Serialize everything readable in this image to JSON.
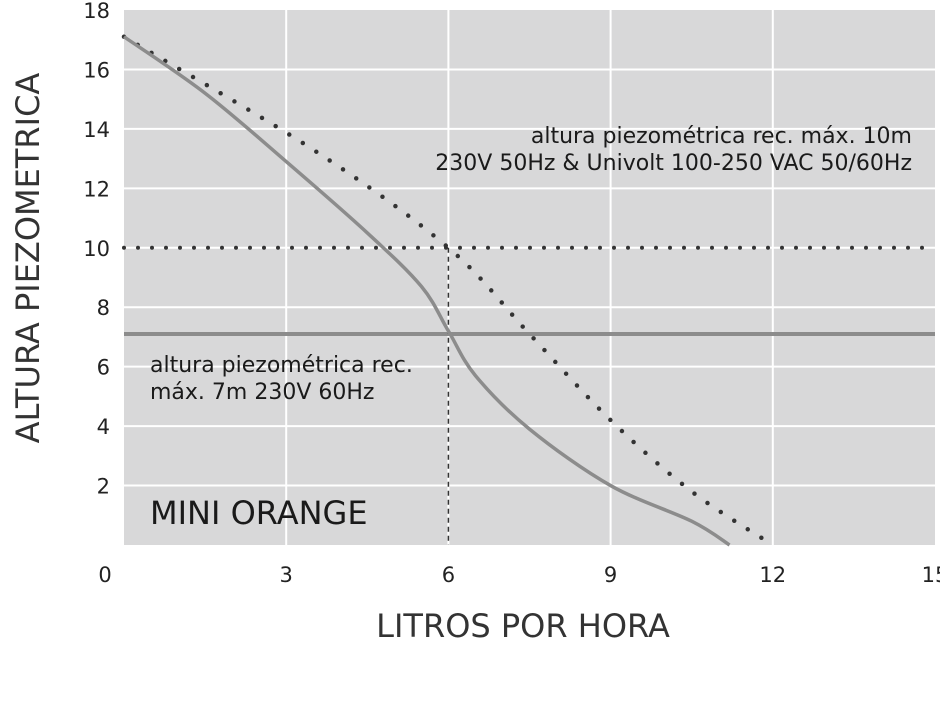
{
  "chart_data": {
    "type": "line",
    "title": "MINI ORANGE",
    "xlabel": "LITROS POR HORA",
    "ylabel": "ALTURA PIEZOMETRICA",
    "xlim": [
      0,
      15
    ],
    "ylim": [
      0,
      18
    ],
    "x_ticks": [
      0,
      3,
      6,
      9,
      12,
      15
    ],
    "y_ticks": [
      2,
      4,
      6,
      8,
      10,
      12,
      14,
      16,
      18
    ],
    "grid": true,
    "series": [
      {
        "style": "dotted",
        "color": "#333333",
        "points": [
          [
            0,
            17.1
          ],
          [
            3.5,
            13.3
          ],
          [
            6,
            10
          ],
          [
            7.5,
            7.1
          ],
          [
            9,
            4.2
          ],
          [
            10.5,
            1.8
          ],
          [
            12,
            0
          ]
        ]
      },
      {
        "style": "solid",
        "color": "#8c8c8c",
        "points": [
          [
            0,
            17.1
          ],
          [
            1.5,
            15.2
          ],
          [
            3,
            12.9
          ],
          [
            4.5,
            10.5
          ],
          [
            5.5,
            8.7
          ],
          [
            6,
            7.2
          ],
          [
            6.5,
            5.7
          ],
          [
            7.5,
            3.9
          ],
          [
            9,
            2.0
          ],
          [
            10.5,
            0.8
          ],
          [
            11.2,
            0
          ]
        ]
      }
    ],
    "reference_lines": [
      {
        "y": 10,
        "style": "dotted",
        "color": "#333333",
        "label_lines": [
          "altura piezométrica rec. máx. 10m",
          "230V 50Hz & Univolt 100-250 VAC 50/60Hz"
        ]
      },
      {
        "y": 7.1,
        "style": "solid",
        "color": "#8c8c8c",
        "label_lines": [
          "altura piezométrica rec.",
          "máx. 7m 230V 60Hz"
        ]
      }
    ],
    "marker_line": {
      "x": 6,
      "y_from": 0,
      "y_to": 10,
      "style": "dashed"
    }
  },
  "colors": {
    "plot_background": "#d8d8d9",
    "grid": "#ffffff",
    "text": "#1a1a1a"
  }
}
